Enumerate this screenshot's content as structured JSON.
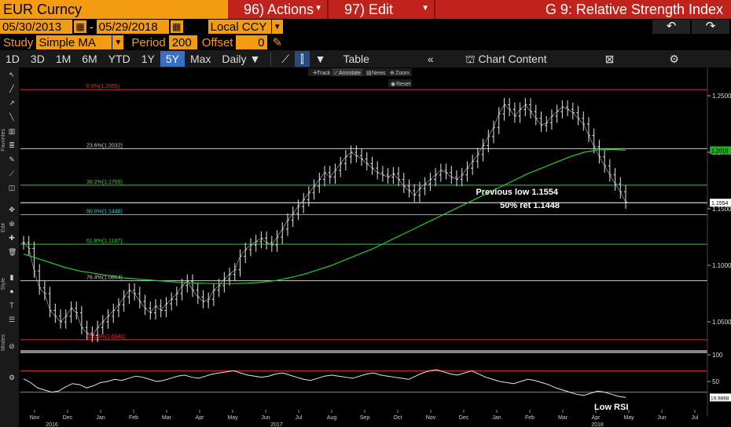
{
  "header": {
    "ticker": "EUR Curncy",
    "actions_label": "96) Actions",
    "edit_label": "97) Edit",
    "title": "G 9: Relative Strength Index"
  },
  "dates": {
    "start": "05/30/2013",
    "separator": "-",
    "end": "05/29/2018",
    "currency": "Local CCY"
  },
  "study": {
    "label": "Study",
    "value": "Simple MA",
    "period_label": "Period",
    "period_value": "200",
    "offset_label": "Offset",
    "offset_value": "0"
  },
  "toolbar": {
    "ranges": [
      "1D",
      "3D",
      "1M",
      "6M",
      "YTD",
      "1Y",
      "5Y",
      "Max"
    ],
    "selected_range": "5Y",
    "frequency": "Daily",
    "table_label": "Table",
    "chart_content_label": "Chart Content"
  },
  "sidebar": {
    "labels": [
      "Favorites",
      "Edit",
      "Style",
      "Modes"
    ]
  },
  "chart_toolbar": {
    "track": "Track",
    "annotate": "Annotate",
    "news": "News",
    "zoom": "Zoom",
    "reset": "Reset"
  },
  "chart_data": {
    "type": "line",
    "price": {
      "x_labels": [
        "Nov",
        "Dec",
        "Jan",
        "Feb",
        "Mar",
        "Apr",
        "May",
        "Jun",
        "Jul",
        "Aug",
        "Sep",
        "Oct",
        "Nov",
        "Dec",
        "Jan",
        "Feb",
        "Mar",
        "Apr",
        "May",
        "Jun",
        "Jul"
      ],
      "year_labels": [
        "2016",
        "2017",
        "2018"
      ],
      "y_ticks": [
        1.05,
        1.1,
        1.15,
        1.2,
        1.25
      ],
      "y_tick_labels": [
        "1.0500",
        "1.1000",
        "1.1500",
        "1.2000",
        "1.2500"
      ],
      "ylim": [
        1.025,
        1.275
      ],
      "fib_levels": [
        {
          "label": "0.0%(1.2555)",
          "value": 1.2555,
          "color": "#e03030"
        },
        {
          "label": "23.6%(1.2032)",
          "value": 1.2032,
          "color": "#cccccc"
        },
        {
          "label": "38.2%(1.1709)",
          "value": 1.1709,
          "color": "#33cc33"
        },
        {
          "label": "50.0%(1.1448)",
          "value": 1.1448,
          "color": "#33cccc"
        },
        {
          "label": "61.8%(1.1187)",
          "value": 1.1187,
          "color": "#33cc33"
        },
        {
          "label": "76.4%(1.0864)",
          "value": 1.0864,
          "color": "#cccccc"
        },
        {
          "label": "100.0%(1.0341)",
          "value": 1.0341,
          "color": "#e03030"
        }
      ],
      "previous_low": 1.1554,
      "previous_low_badge": "1.1554",
      "ma_badge": "1.2018",
      "ma_value": 1.2018,
      "close_series": [
        1.12,
        1.115,
        1.095,
        1.08,
        1.075,
        1.06,
        1.055,
        1.05,
        1.055,
        1.062,
        1.058,
        1.045,
        1.04,
        1.038,
        1.045,
        1.05,
        1.055,
        1.06,
        1.065,
        1.072,
        1.078,
        1.075,
        1.068,
        1.062,
        1.058,
        1.064,
        1.06,
        1.066,
        1.07,
        1.075,
        1.082,
        1.086,
        1.078,
        1.072,
        1.068,
        1.07,
        1.078,
        1.082,
        1.088,
        1.092,
        1.096,
        1.108,
        1.114,
        1.118,
        1.121,
        1.124,
        1.12,
        1.118,
        1.125,
        1.132,
        1.14,
        1.146,
        1.152,
        1.158,
        1.164,
        1.17,
        1.176,
        1.182,
        1.178,
        1.184,
        1.19,
        1.196,
        1.2,
        1.197,
        1.194,
        1.19,
        1.186,
        1.182,
        1.18,
        1.178,
        1.181,
        1.176,
        1.17,
        1.166,
        1.162,
        1.168,
        1.172,
        1.176,
        1.18,
        1.184,
        1.182,
        1.178,
        1.176,
        1.18,
        1.186,
        1.192,
        1.198,
        1.206,
        1.214,
        1.222,
        1.234,
        1.242,
        1.238,
        1.232,
        1.238,
        1.242,
        1.236,
        1.23,
        1.224,
        1.226,
        1.232,
        1.236,
        1.24,
        1.238,
        1.235,
        1.23,
        1.225,
        1.215,
        1.205,
        1.196,
        1.188,
        1.18,
        1.172,
        1.165,
        1.156
      ],
      "ma_series": [
        1.11,
        1.106,
        1.102,
        1.098,
        1.095,
        1.093,
        1.091,
        1.089,
        1.088,
        1.087,
        1.086,
        1.085,
        1.0845,
        1.084,
        1.0838,
        1.0838,
        1.0842,
        1.085,
        1.0865,
        1.089,
        1.092,
        1.096,
        1.1,
        1.105,
        1.11,
        1.115,
        1.121,
        1.127,
        1.133,
        1.139,
        1.145,
        1.151,
        1.157,
        1.163,
        1.169,
        1.175,
        1.181,
        1.186,
        1.191,
        1.196,
        1.2,
        1.202,
        1.2025,
        1.2018
      ]
    },
    "rsi": {
      "name": "RSI",
      "y_ticks": [
        50,
        100
      ],
      "ylim": [
        0,
        100
      ],
      "upper_band": 70,
      "lower_band": 30,
      "last_badge": "19.9868",
      "last_value": 19.9868,
      "values": [
        55,
        48,
        38,
        34,
        30,
        32,
        40,
        46,
        44,
        38,
        42,
        48,
        50,
        54,
        52,
        56,
        60,
        58,
        54,
        50,
        52,
        56,
        60,
        62,
        58,
        56,
        60,
        64,
        66,
        68,
        70,
        66,
        62,
        60,
        58,
        60,
        64,
        66,
        62,
        58,
        54,
        52,
        56,
        60,
        62,
        60,
        58,
        56,
        60,
        64,
        66,
        62,
        60,
        58,
        56,
        54,
        60,
        66,
        70,
        72,
        68,
        64,
        62,
        66,
        70,
        64,
        58,
        54,
        50,
        48,
        46,
        50,
        54,
        52,
        48,
        44,
        38,
        34,
        30,
        26,
        24,
        28,
        32,
        30,
        26,
        22,
        20
      ]
    },
    "annotations": {
      "previous_low": "Previous low 1.1554",
      "fifty_ret": "50% ret 1.1448",
      "low_rsi": "Low RSI"
    }
  }
}
